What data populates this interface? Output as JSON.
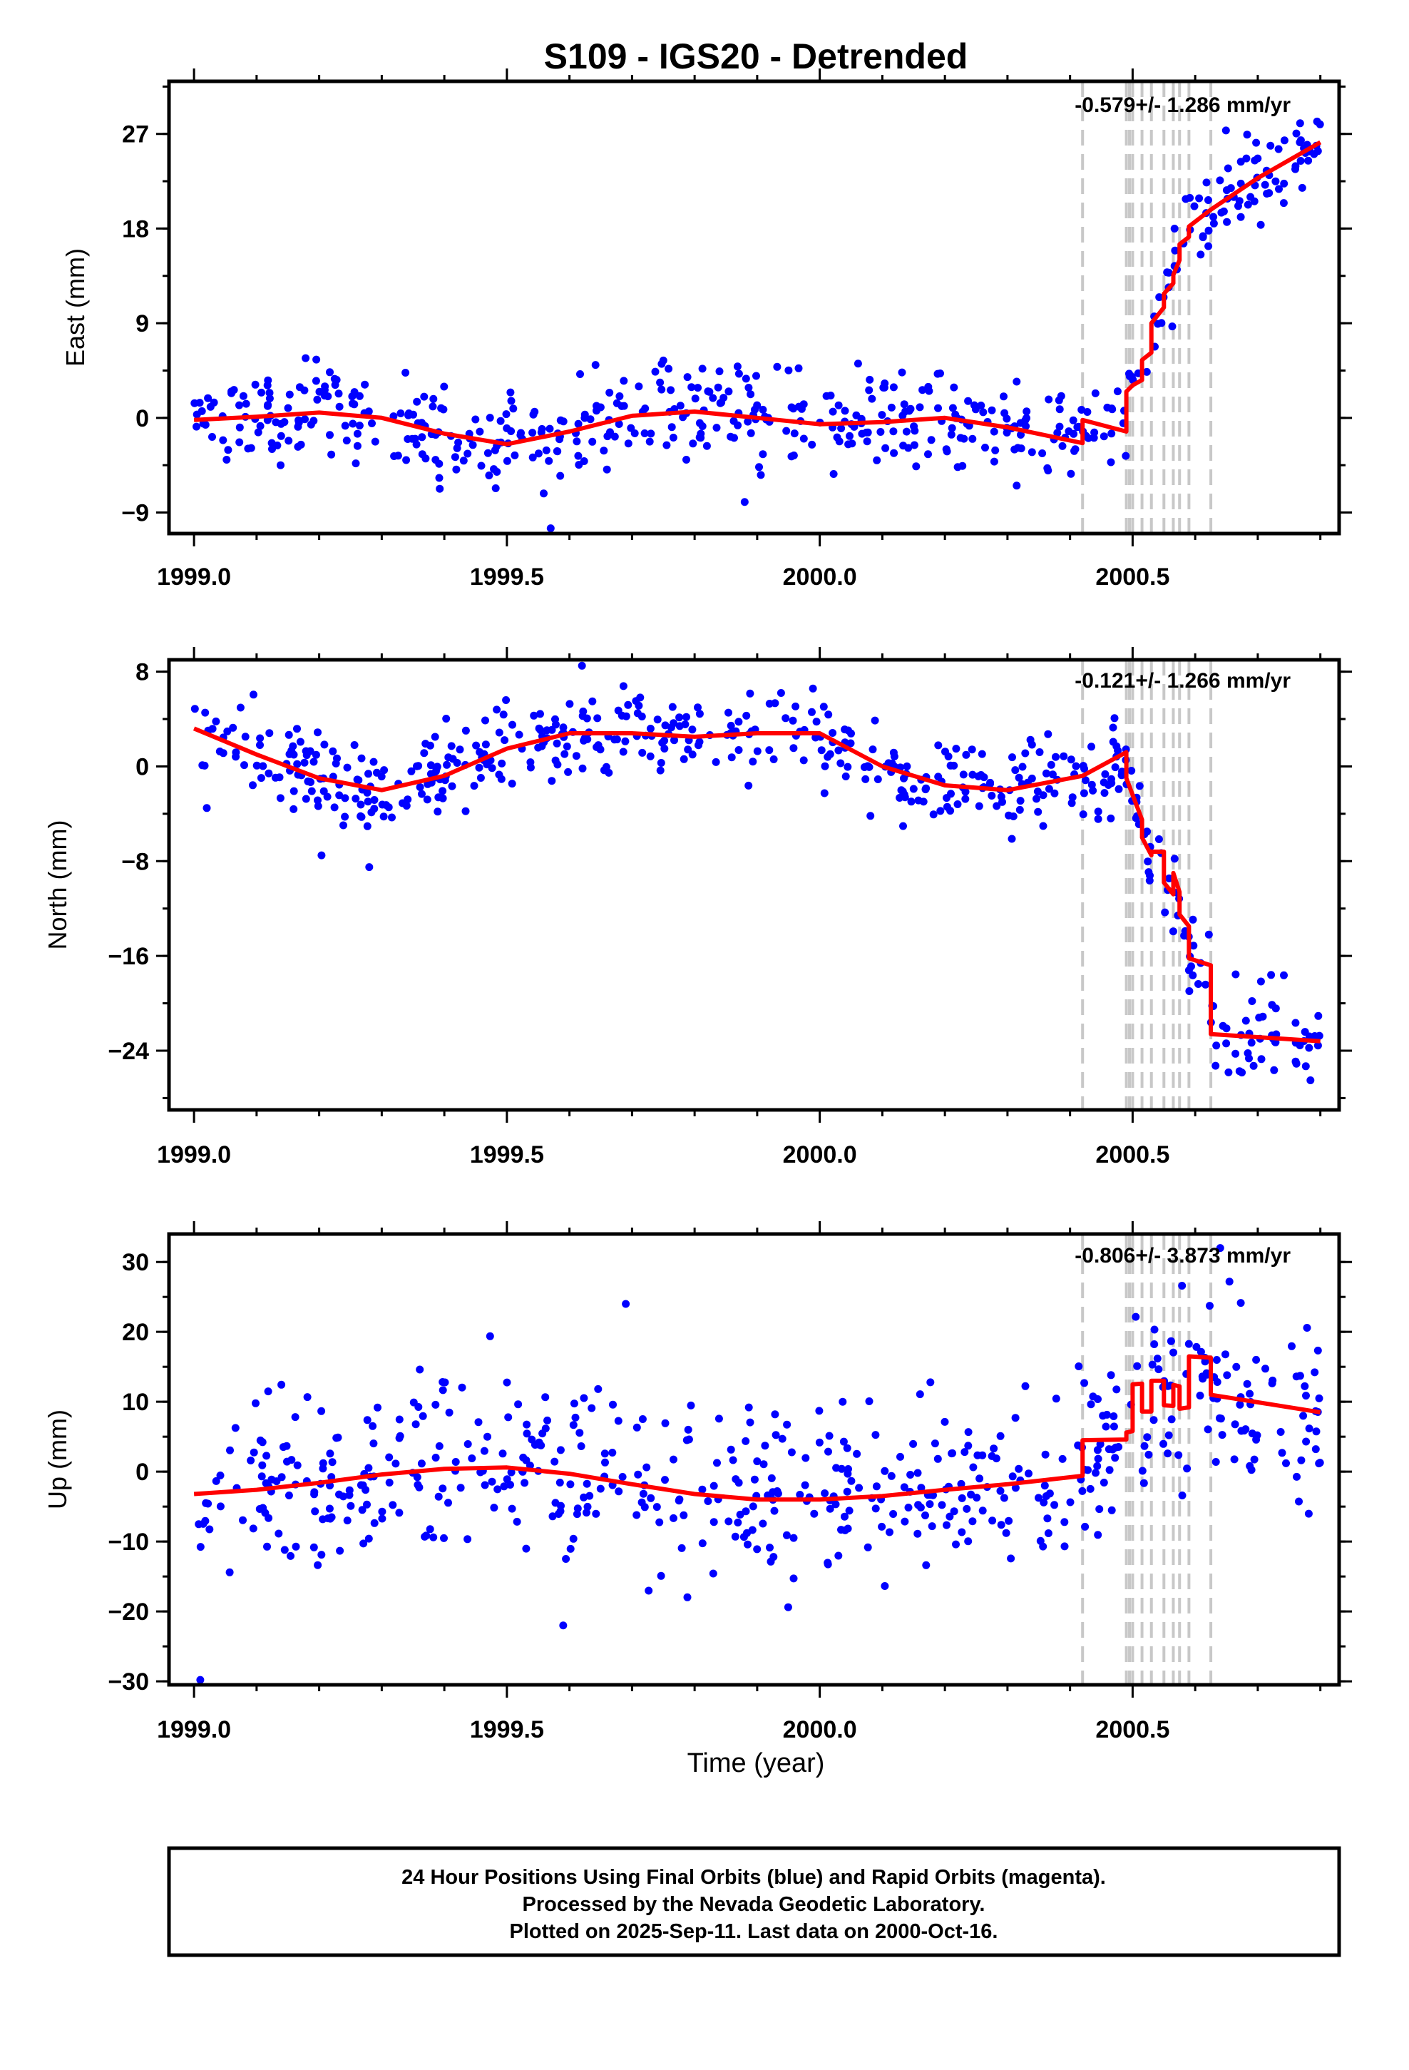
{
  "title": "S109 - IGS20 - Detrended",
  "x_axis_label": "Time (year)",
  "footer": {
    "line1": "24 Hour Positions Using Final Orbits (blue) and Rapid Orbits (magenta).",
    "line2": "Processed by the Nevada Geodetic Laboratory.",
    "line3": "Plotted on 2025-Sep-11. Last data on 2000-Oct-16."
  },
  "colors": {
    "points": "#0000ff",
    "model": "#ff0000",
    "breaks": "#c8c8c8",
    "frame": "#000000"
  },
  "chart_data": [
    {
      "type": "scatter",
      "name": "east",
      "ylabel": "East (mm)",
      "rate": "-0.579+/- 1.286 mm/yr",
      "xlim": [
        1998.96,
        2000.83
      ],
      "ylim": [
        -11,
        32
      ],
      "xticks": [
        1999.0,
        1999.5,
        2000.0,
        2000.5
      ],
      "xtick_labels": [
        "1999.0",
        "1999.5",
        "2000.0",
        "2000.5"
      ],
      "yticks": [
        -9,
        0,
        9,
        18,
        27
      ],
      "ytick_labels": [
        "−9",
        "0",
        "9",
        "18",
        "27"
      ],
      "breaks": [
        2000.42,
        2000.49,
        2000.495,
        2000.5,
        2000.515,
        2000.53,
        2000.55,
        2000.565,
        2000.575,
        2000.59,
        2000.625
      ],
      "model": {
        "x": [
          1999.0,
          1999.1,
          1999.2,
          1999.3,
          1999.4,
          1999.5,
          1999.6,
          1999.7,
          1999.8,
          1999.9,
          2000.0,
          2000.1,
          2000.2,
          2000.3,
          2000.42,
          2000.42,
          2000.49,
          2000.49,
          2000.5,
          2000.515,
          2000.515,
          2000.53,
          2000.53,
          2000.55,
          2000.55,
          2000.565,
          2000.565,
          2000.575,
          2000.575,
          2000.59,
          2000.59,
          2000.625,
          2000.7,
          2000.8
        ],
        "y": [
          -0.2,
          0.1,
          0.5,
          0.0,
          -1.5,
          -2.5,
          -1.3,
          0.2,
          0.6,
          0.0,
          -0.6,
          -0.4,
          0.0,
          -0.9,
          -2.4,
          -0.2,
          -1.3,
          2.5,
          3.1,
          3.6,
          5.5,
          6.2,
          9.0,
          10.5,
          11.8,
          12.8,
          13.6,
          15.0,
          16.5,
          17.2,
          18.2,
          19.8,
          22.8,
          26.2
        ]
      },
      "points_generator": {
        "x_start": 1999.0,
        "x_end": 2000.8,
        "count": 540,
        "noise": 2.2,
        "outliers": [
          [
            1999.57,
            -10.5
          ],
          [
            1999.88,
            -8.0
          ]
        ]
      }
    },
    {
      "type": "scatter",
      "name": "north",
      "ylabel": "North (mm)",
      "rate": "-0.121+/- 1.266 mm/yr",
      "xlim": [
        1998.96,
        2000.83
      ],
      "ylim": [
        -29,
        9
      ],
      "xticks": [
        1999.0,
        1999.5,
        2000.0,
        2000.5
      ],
      "xtick_labels": [
        "1999.0",
        "1999.5",
        "2000.0",
        "2000.5"
      ],
      "yticks": [
        -24,
        -16,
        -8,
        0,
        8
      ],
      "ytick_labels": [
        "−24",
        "−16",
        "−8",
        "0",
        "8"
      ],
      "breaks": [
        2000.42,
        2000.49,
        2000.495,
        2000.5,
        2000.515,
        2000.53,
        2000.55,
        2000.565,
        2000.575,
        2000.59,
        2000.625
      ],
      "model": {
        "x": [
          1999.0,
          1999.1,
          1999.2,
          1999.3,
          1999.4,
          1999.5,
          1999.6,
          1999.7,
          1999.8,
          1999.9,
          2000.0,
          2000.1,
          2000.2,
          2000.3,
          2000.42,
          2000.49,
          2000.49,
          2000.515,
          2000.515,
          2000.53,
          2000.53,
          2000.55,
          2000.55,
          2000.565,
          2000.565,
          2000.575,
          2000.575,
          2000.59,
          2000.59,
          2000.625,
          2000.625,
          2000.8
        ],
        "y": [
          3.2,
          1.0,
          -1.0,
          -2.0,
          -0.8,
          1.5,
          2.8,
          2.8,
          2.5,
          2.8,
          2.8,
          0.0,
          -1.6,
          -2.0,
          -0.8,
          1.2,
          -1.0,
          -4.5,
          -6.0,
          -7.5,
          -7.2,
          -7.2,
          -9.8,
          -10.8,
          -9.0,
          -10.6,
          -12.5,
          -13.5,
          -16.2,
          -16.8,
          -22.6,
          -23.2
        ]
      },
      "points_generator": {
        "x_start": 1999.0,
        "x_end": 2000.8,
        "count": 540,
        "noise": 1.8,
        "outliers": [
          [
            1999.28,
            -8.5
          ],
          [
            1999.62,
            8.5
          ]
        ]
      }
    },
    {
      "type": "scatter",
      "name": "up",
      "ylabel": "Up (mm)",
      "rate": "-0.806+/- 3.873 mm/yr",
      "xlim": [
        1998.96,
        2000.83
      ],
      "ylim": [
        -30.5,
        34
      ],
      "xticks": [
        1999.0,
        1999.5,
        2000.0,
        2000.5
      ],
      "xtick_labels": [
        "1999.0",
        "1999.5",
        "2000.0",
        "2000.5"
      ],
      "yticks": [
        -30,
        -20,
        -10,
        0,
        10,
        20,
        30
      ],
      "ytick_labels": [
        "−30",
        "−20",
        "−10",
        "0",
        "10",
        "20",
        "30"
      ],
      "breaks": [
        2000.42,
        2000.49,
        2000.495,
        2000.5,
        2000.515,
        2000.53,
        2000.55,
        2000.565,
        2000.575,
        2000.59,
        2000.625
      ],
      "model": {
        "x": [
          1999.0,
          1999.1,
          1999.2,
          1999.3,
          1999.4,
          1999.5,
          1999.6,
          1999.7,
          1999.8,
          1999.9,
          2000.0,
          2000.1,
          2000.2,
          2000.3,
          2000.42,
          2000.42,
          2000.49,
          2000.49,
          2000.5,
          2000.5,
          2000.515,
          2000.515,
          2000.53,
          2000.53,
          2000.55,
          2000.55,
          2000.565,
          2000.565,
          2000.575,
          2000.575,
          2000.59,
          2000.59,
          2000.625,
          2000.625,
          2000.8
        ],
        "y": [
          -3.2,
          -2.6,
          -1.6,
          -0.4,
          0.4,
          0.6,
          -0.3,
          -1.8,
          -3.2,
          -4.0,
          -4.0,
          -3.5,
          -2.6,
          -1.8,
          -0.6,
          4.5,
          4.6,
          5.6,
          5.8,
          12.5,
          12.6,
          8.6,
          8.6,
          13.0,
          13.0,
          9.5,
          9.4,
          12.4,
          12.2,
          9.0,
          9.2,
          16.5,
          16.3,
          11.0,
          8.5
        ]
      },
      "points_generator": {
        "x_start": 1999.0,
        "x_end": 2000.8,
        "count": 560,
        "noise": 6.5,
        "outliers": [
          [
            1999.01,
            -29.8
          ],
          [
            1999.69,
            24.0
          ],
          [
            1999.59,
            -22.0
          ],
          [
            2000.64,
            32.0
          ]
        ]
      }
    }
  ]
}
